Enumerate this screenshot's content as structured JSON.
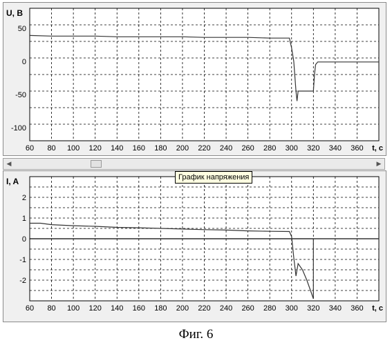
{
  "tooltip": "График напряжения",
  "caption": "Фиг. 6",
  "chart_data": [
    {
      "type": "line",
      "ylabel": "U, B",
      "xlabel": "t, c",
      "xlim": [
        60,
        380
      ],
      "ylim": [
        -120,
        80
      ],
      "xticks": [
        60,
        80,
        100,
        120,
        140,
        160,
        180,
        200,
        220,
        240,
        260,
        280,
        300,
        320,
        340,
        360
      ],
      "yticks": [
        50,
        0,
        -50,
        -100
      ],
      "grid": true,
      "color": "#333333",
      "series": [
        {
          "x": [
            60,
            80,
            100,
            120,
            140,
            160,
            180,
            200,
            220,
            240,
            260,
            280,
            298,
            300,
            302,
            304,
            305,
            306,
            320,
            321,
            322,
            324,
            380
          ],
          "y": [
            39,
            38,
            38,
            38,
            37,
            37,
            37,
            37,
            36,
            36,
            36,
            35,
            35,
            20,
            0,
            -45,
            -60,
            -45,
            -45,
            -20,
            -5,
            -1,
            -1
          ]
        }
      ]
    },
    {
      "type": "line",
      "ylabel": "I, A",
      "xlabel": "t, c",
      "xlim": [
        60,
        380
      ],
      "ylim": [
        -3,
        3
      ],
      "xticks": [
        60,
        80,
        100,
        120,
        140,
        160,
        180,
        200,
        220,
        240,
        260,
        280,
        300,
        320,
        340,
        360
      ],
      "yticks": [
        2,
        1,
        0,
        -1,
        -2
      ],
      "grid": true,
      "color": "#333333",
      "series": [
        {
          "x": [
            60,
            70,
            80,
            100,
            120,
            140,
            160,
            180,
            200,
            220,
            240,
            260,
            280,
            298,
            300,
            302,
            304,
            306,
            310,
            314,
            318,
            320,
            320,
            380
          ],
          "y": [
            0.75,
            0.75,
            0.68,
            0.63,
            0.6,
            0.55,
            0.53,
            0.5,
            0.47,
            0.44,
            0.42,
            0.38,
            0.36,
            0.35,
            0.1,
            -0.9,
            -1.8,
            -1.2,
            -1.5,
            -2.0,
            -2.6,
            -2.9,
            0,
            0
          ]
        }
      ]
    }
  ]
}
